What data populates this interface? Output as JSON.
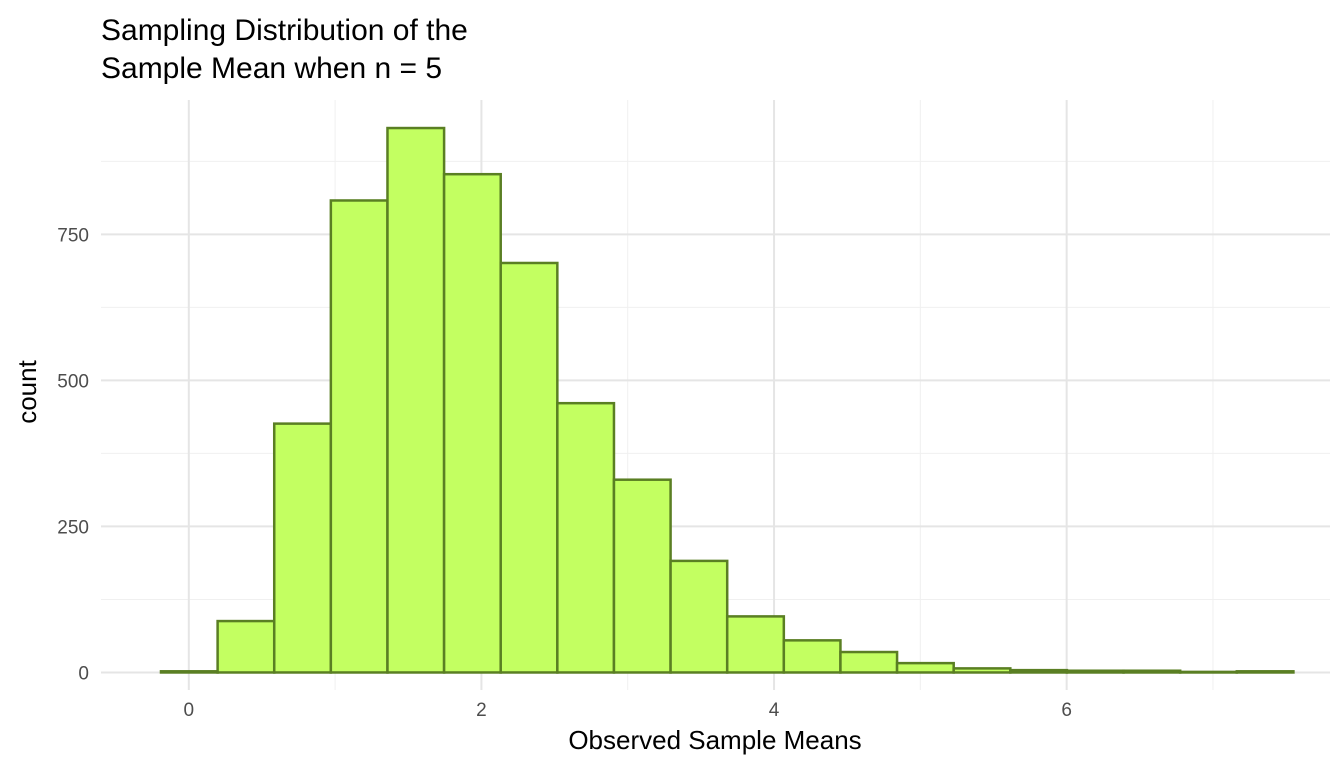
{
  "chart_data": {
    "type": "bar",
    "subtype": "histogram",
    "title_lines": [
      "Sampling Distribution of the",
      "Sample Mean when n = 5"
    ],
    "xlabel": "Observed Sample Means",
    "ylabel": "count",
    "xlim": [
      -0.6,
      7.8
    ],
    "ylim": [
      -30,
      980
    ],
    "x_ticks": [
      0,
      2,
      4,
      6
    ],
    "x_tick_labels": [
      "0",
      "2",
      "4",
      "6"
    ],
    "y_ticks": [
      0,
      250,
      500,
      750
    ],
    "y_tick_labels": [
      "0",
      "250",
      "500",
      "750"
    ],
    "grid": true,
    "legend": "none",
    "bin_width": 0.387,
    "bins": [
      {
        "x0": -0.19,
        "x1": 0.197,
        "count": 2
      },
      {
        "x0": 0.197,
        "x1": 0.584,
        "count": 88
      },
      {
        "x0": 0.584,
        "x1": 0.971,
        "count": 426
      },
      {
        "x0": 0.971,
        "x1": 1.358,
        "count": 808
      },
      {
        "x0": 1.358,
        "x1": 1.745,
        "count": 932
      },
      {
        "x0": 1.745,
        "x1": 2.132,
        "count": 853
      },
      {
        "x0": 2.132,
        "x1": 2.519,
        "count": 701
      },
      {
        "x0": 2.519,
        "x1": 2.906,
        "count": 461
      },
      {
        "x0": 2.906,
        "x1": 3.293,
        "count": 330
      },
      {
        "x0": 3.293,
        "x1": 3.68,
        "count": 191
      },
      {
        "x0": 3.68,
        "x1": 4.067,
        "count": 96
      },
      {
        "x0": 4.067,
        "x1": 4.454,
        "count": 55
      },
      {
        "x0": 4.454,
        "x1": 4.841,
        "count": 35
      },
      {
        "x0": 4.841,
        "x1": 5.228,
        "count": 16
      },
      {
        "x0": 5.228,
        "x1": 5.615,
        "count": 7
      },
      {
        "x0": 5.615,
        "x1": 6.002,
        "count": 4
      },
      {
        "x0": 6.002,
        "x1": 6.389,
        "count": 3
      },
      {
        "x0": 6.389,
        "x1": 6.776,
        "count": 3
      },
      {
        "x0": 6.776,
        "x1": 7.163,
        "count": 1
      },
      {
        "x0": 7.163,
        "x1": 7.55,
        "count": 2
      }
    ],
    "colors": {
      "bar_fill": "#c3ff61",
      "bar_stroke": "#5a7f23",
      "grid_major": "#e5e5e5",
      "grid_minor": "#f0f0f0",
      "tick_text": "#4d4d4d",
      "text": "#000000"
    }
  }
}
